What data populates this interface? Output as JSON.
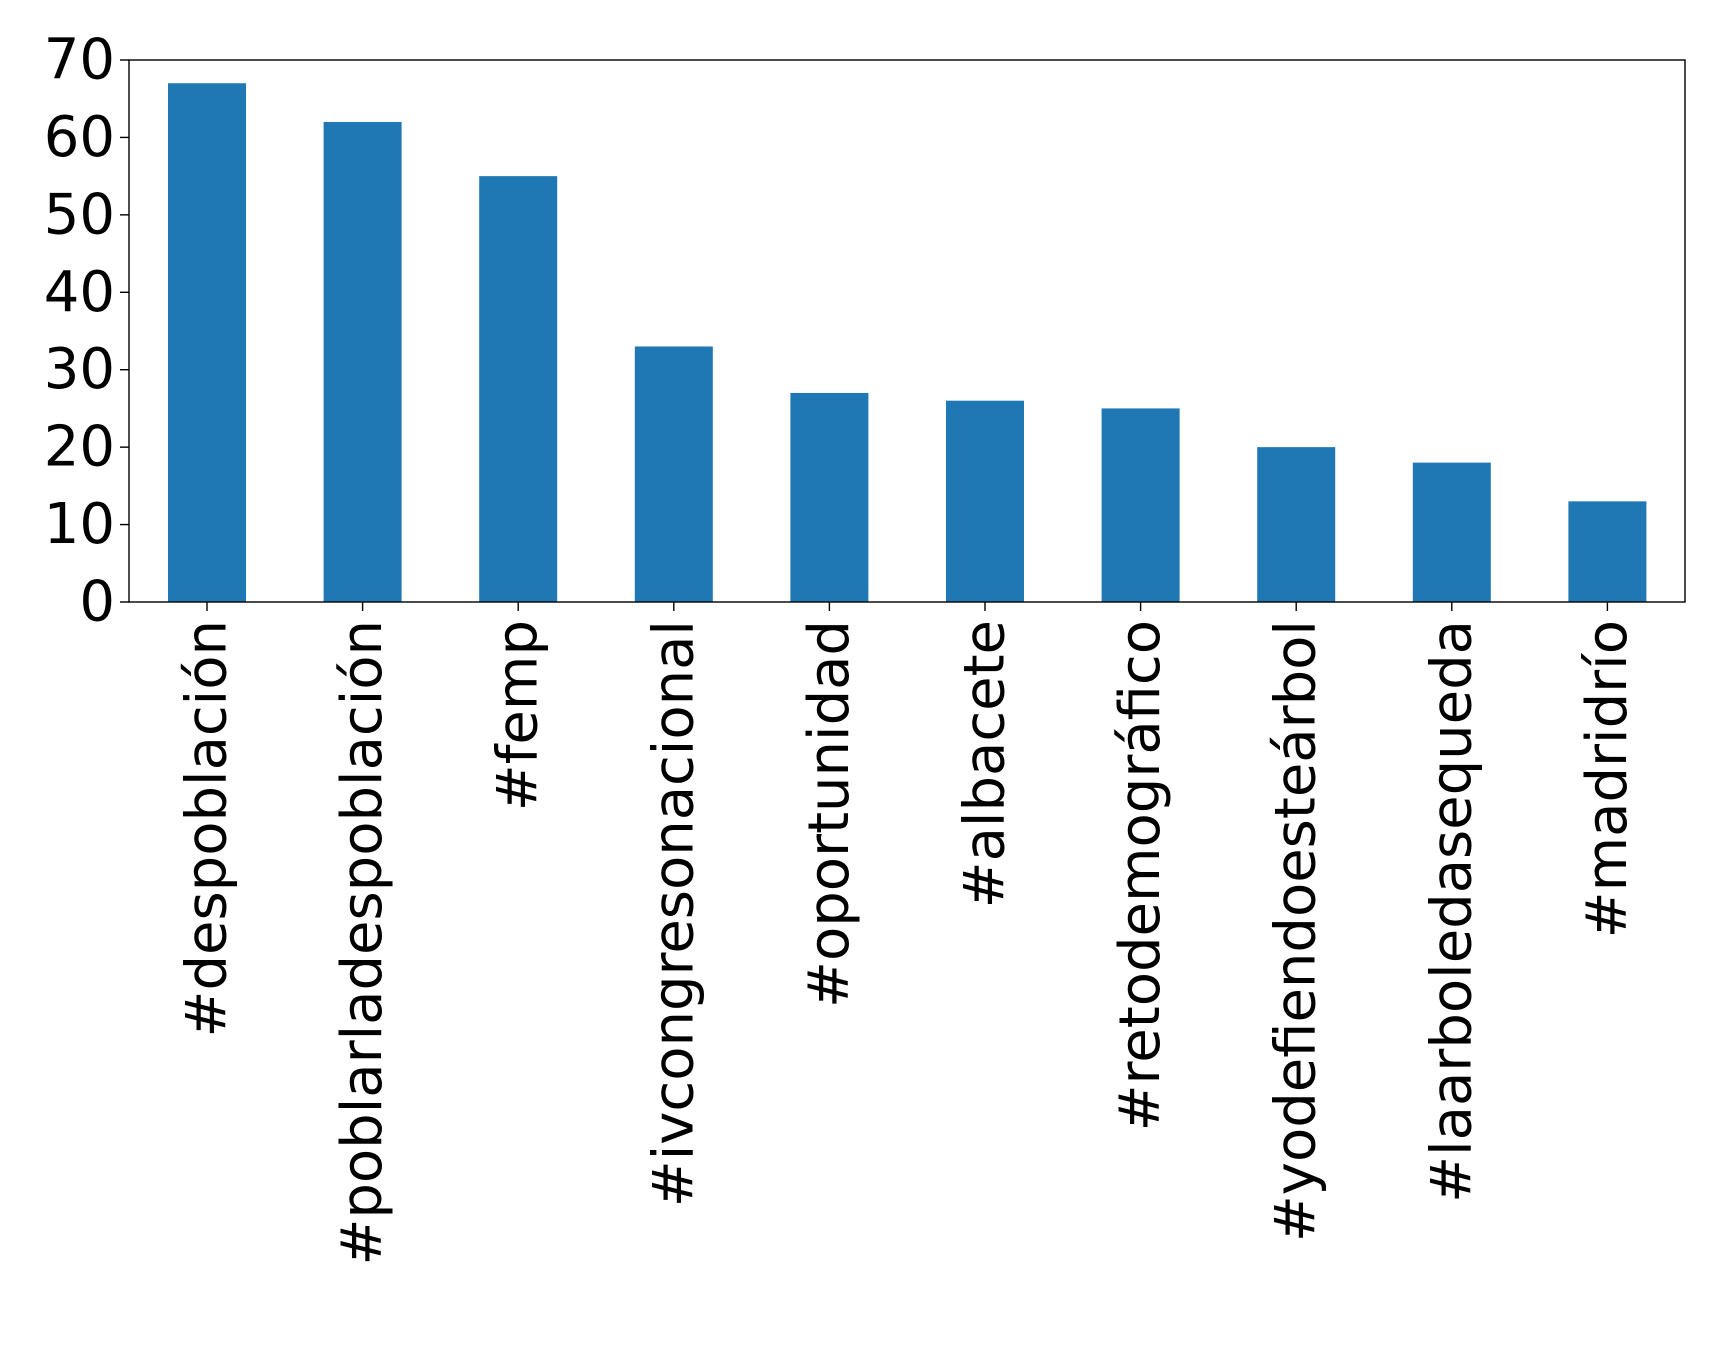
{
  "chart_data": {
    "type": "bar",
    "title": "",
    "xlabel": "",
    "ylabel": "",
    "categories": [
      "#despoblación",
      "#poblarladespoblación",
      "#femp",
      "#ivcongresonacional",
      "#oportunidad",
      "#albacete",
      "#retodemográfico",
      "#yodefiendoesteárbol",
      "#laarboledasequeda",
      "#madridrío"
    ],
    "values": [
      67,
      62,
      55,
      33,
      27,
      26,
      25,
      20,
      18,
      13
    ],
    "ylim": [
      0,
      70
    ],
    "yticks": [
      0,
      10,
      20,
      30,
      40,
      50,
      60,
      70
    ],
    "grid": false,
    "legend": "none",
    "bar_color": "#1f77b4",
    "axis_color": "#000000"
  }
}
